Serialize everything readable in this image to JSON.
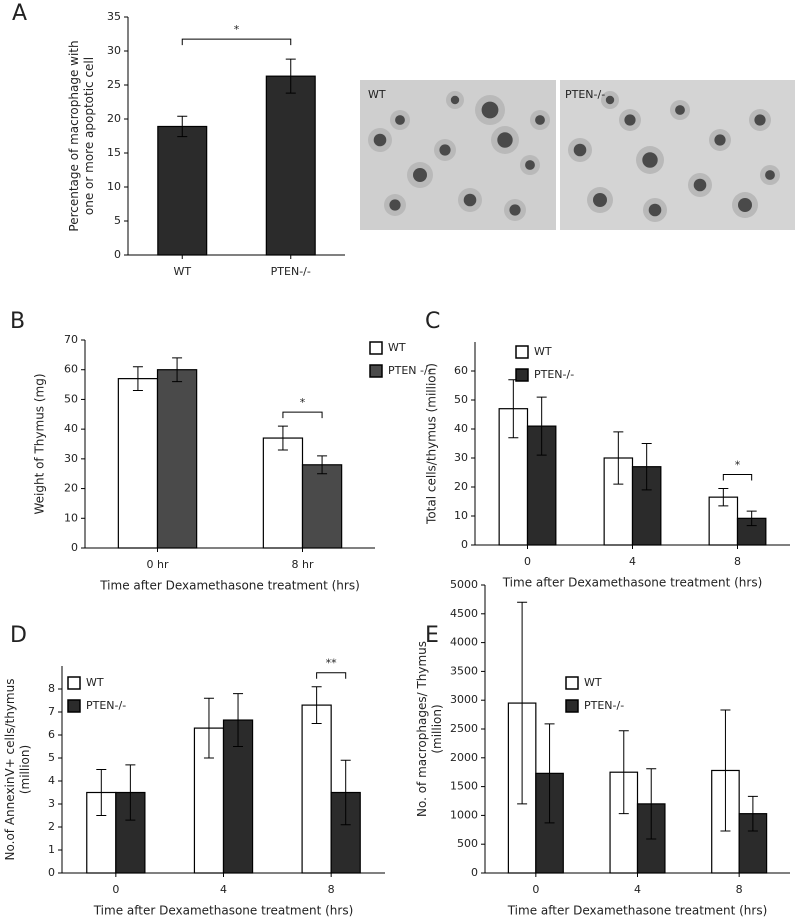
{
  "chart_data": [
    {
      "type": "bar",
      "panel": "A",
      "categories": [
        "WT",
        "PTEN-/-"
      ],
      "series": [
        {
          "color": "#2b2b2b",
          "values": [
            18.9,
            26.3
          ],
          "errors": [
            1.5,
            2.5
          ]
        }
      ],
      "ylabel": [
        "Percentage of macrophage with",
        "one or more apoptotic cell"
      ],
      "ylim": [
        0,
        35
      ],
      "yticks": [
        0,
        5,
        10,
        15,
        20,
        25,
        30,
        35
      ],
      "significance": "*",
      "image_labels": [
        "WT",
        "PTEN-/-"
      ]
    },
    {
      "type": "bar",
      "panel": "B",
      "categories": [
        "0 hr",
        "8 hr"
      ],
      "series": [
        {
          "name": "WT",
          "color": "#ffffff",
          "values": [
            57,
            37
          ],
          "errors": [
            4,
            4
          ]
        },
        {
          "name": "PTEN -/-",
          "color": "#4a4a4a",
          "values": [
            60,
            28
          ],
          "errors": [
            4,
            3
          ]
        }
      ],
      "xlabel": "Time after Dexamethasone treatment (hrs)",
      "ylabel": [
        "Weight of Thymus (mg)"
      ],
      "ylim": [
        0,
        70
      ],
      "yticks": [
        0,
        10,
        20,
        30,
        40,
        50,
        60,
        70
      ],
      "significance": "*"
    },
    {
      "type": "bar",
      "panel": "C",
      "categories": [
        "0",
        "4",
        "8"
      ],
      "series": [
        {
          "name": "WT",
          "color": "#ffffff",
          "values": [
            47,
            30,
            16.5
          ],
          "errors": [
            10,
            9,
            3
          ]
        },
        {
          "name": "PTEN-/-",
          "color": "#2b2b2b",
          "values": [
            41,
            27,
            9.2
          ],
          "errors": [
            10,
            8,
            2.5
          ]
        }
      ],
      "xlabel": "Time after Dexamethasone treatment (hrs)",
      "ylabel": [
        "Total cells/thymus (million)"
      ],
      "ylim": [
        0,
        70
      ],
      "yticks": [
        0,
        10,
        20,
        30,
        40,
        50,
        60
      ],
      "significance": "*"
    },
    {
      "type": "bar",
      "panel": "D",
      "categories": [
        "0",
        "4",
        "8"
      ],
      "series": [
        {
          "name": "WT",
          "color": "#ffffff",
          "values": [
            3.5,
            6.3,
            7.3
          ],
          "errors": [
            1,
            1.3,
            0.8
          ]
        },
        {
          "name": "PTEN-/-",
          "color": "#2b2b2b",
          "values": [
            3.5,
            6.65,
            3.5
          ],
          "errors": [
            1.2,
            1.15,
            1.4
          ]
        }
      ],
      "xlabel": "Time after Dexamethasone treatment (hrs)",
      "ylabel": [
        "No.of AnnexinV+ cells/thymus",
        "(million)"
      ],
      "ylim": [
        0,
        9
      ],
      "yticks": [
        0,
        1,
        2,
        3,
        4,
        5,
        6,
        7,
        8
      ],
      "significance": "**"
    },
    {
      "type": "bar",
      "panel": "E",
      "categories": [
        "0",
        "4",
        "8"
      ],
      "series": [
        {
          "name": "WT",
          "color": "#ffffff",
          "values": [
            2950,
            1750,
            1780
          ],
          "errors": [
            1750,
            720,
            1050
          ]
        },
        {
          "name": "PTEN-/-",
          "color": "#2b2b2b",
          "values": [
            1730,
            1200,
            1030
          ],
          "errors": [
            860,
            610,
            300
          ]
        }
      ],
      "xlabel": "Time after Dexamethasone treatment (hrs)",
      "ylabel": [
        "No. of macrophages/ Thymus",
        "(million)"
      ],
      "ylim": [
        0,
        5000
      ],
      "yticks": [
        0,
        500,
        1000,
        1500,
        2000,
        2500,
        3000,
        3500,
        4000,
        4500,
        5000
      ]
    }
  ]
}
